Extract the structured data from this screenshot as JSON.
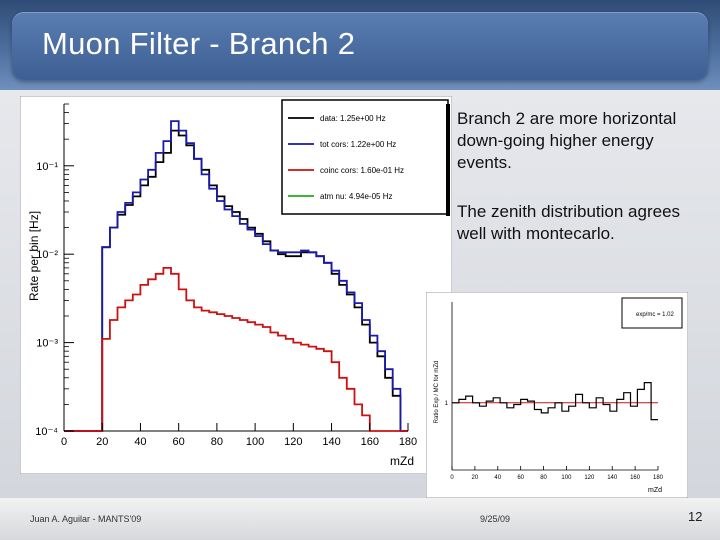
{
  "slide": {
    "title": "Muon Filter - Branch 2",
    "bullet1": [
      "Branch 2 are more horizontal",
      "down-going higher energy",
      "events."
    ],
    "bullet2": [
      "The zenith distribution agrees",
      "well with montecarlo."
    ],
    "footer_left": "Juan A. Aguilar - MANTS'09",
    "footer_center": "9/25/09",
    "page_number": "12"
  },
  "chart_data": [
    {
      "type": "line",
      "xlabel": "mZd",
      "ylabel": "Rate per bin [Hz]",
      "ylog": true,
      "ylim": [
        0.0001,
        0.5
      ],
      "xlim": [
        0,
        180
      ],
      "x_ticks": [
        "0",
        "20",
        "40",
        "60",
        "80",
        "100",
        "120",
        "140",
        "160",
        "180"
      ],
      "y_ticks": [
        "10⁻¹",
        "10⁻²",
        "10⁻³",
        "10⁻⁴"
      ],
      "legend": {
        "placement": "top-right",
        "entries": [
          {
            "label": "data: 1.25e+00 Hz",
            "color": "#000000"
          },
          {
            "label": "tot cors: 1.22e+00 Hz",
            "color": "#1a1aa8"
          },
          {
            "label": "coinc cors: 1.60e-01 Hz",
            "color": "#cc1111"
          },
          {
            "label": "atm nu: 4.94e-05 Hz",
            "color": "#22aa22"
          }
        ]
      },
      "x": [
        0,
        4,
        8,
        12,
        16,
        20,
        24,
        28,
        32,
        36,
        40,
        44,
        48,
        52,
        56,
        60,
        64,
        68,
        72,
        76,
        80,
        84,
        88,
        92,
        96,
        100,
        104,
        108,
        112,
        116,
        120,
        124,
        128,
        132,
        136,
        140,
        144,
        148,
        152,
        156,
        160,
        164,
        168,
        172,
        176
      ],
      "series": [
        {
          "name": "data",
          "color": "#000000",
          "values": [
            0.0001,
            0.0001,
            0.0001,
            0.0001,
            0.0001,
            0.012,
            0.02,
            0.028,
            0.036,
            0.045,
            0.06,
            0.075,
            0.11,
            0.14,
            0.25,
            0.22,
            0.17,
            0.12,
            0.09,
            0.06,
            0.045,
            0.035,
            0.03,
            0.025,
            0.02,
            0.017,
            0.014,
            0.011,
            0.01,
            0.0095,
            0.0095,
            0.0105,
            0.0105,
            0.0095,
            0.008,
            0.006,
            0.0045,
            0.0035,
            0.0025,
            0.0016,
            0.001,
            0.0007,
            0.0004,
            0.00025,
            0.0001
          ]
        },
        {
          "name": "tot cors",
          "color": "#1a1aa8",
          "values": [
            0.0001,
            0.0001,
            0.0001,
            0.0001,
            0.0001,
            0.012,
            0.02,
            0.03,
            0.038,
            0.05,
            0.07,
            0.09,
            0.14,
            0.19,
            0.32,
            0.25,
            0.18,
            0.12,
            0.08,
            0.055,
            0.04,
            0.032,
            0.027,
            0.022,
            0.019,
            0.016,
            0.013,
            0.011,
            0.0105,
            0.0105,
            0.0105,
            0.011,
            0.0105,
            0.0095,
            0.008,
            0.0065,
            0.005,
            0.0037,
            0.0028,
            0.0018,
            0.0012,
            0.0008,
            0.0005,
            0.0003,
            0.0001
          ]
        },
        {
          "name": "coinc cors",
          "color": "#cc1111",
          "values": [
            0.0001,
            0.0001,
            0.0001,
            0.0001,
            0.0001,
            0.0011,
            0.0018,
            0.0025,
            0.003,
            0.0035,
            0.0045,
            0.0052,
            0.006,
            0.007,
            0.006,
            0.004,
            0.003,
            0.0025,
            0.0023,
            0.0022,
            0.0021,
            0.002,
            0.0019,
            0.0018,
            0.0017,
            0.0016,
            0.0015,
            0.0013,
            0.0012,
            0.0011,
            0.001,
            0.00095,
            0.0009,
            0.00085,
            0.0008,
            0.0006,
            0.0004,
            0.0003,
            0.0002,
            0.00015,
            0.0001,
            0.0001,
            0.0001,
            0.0001,
            0.0001
          ]
        }
      ]
    },
    {
      "type": "line",
      "ylabel": "Ratio Exp / MC for mZd",
      "xlabel": "mZd",
      "xlim": [
        0,
        180
      ],
      "x_ticks": [
        "0",
        "20",
        "40",
        "60",
        "80",
        "100",
        "120",
        "140",
        "160",
        "180"
      ],
      "y_reference_label": "1",
      "reference_line": 1,
      "legend": {
        "placement": "top-right",
        "entries": [
          {
            "label": "exp/mc = 1.02"
          }
        ]
      },
      "series": [
        {
          "name": "ratio",
          "color": "#000000",
          "x": [
            0,
            6,
            12,
            18,
            24,
            30,
            36,
            42,
            48,
            54,
            60,
            66,
            72,
            78,
            84,
            90,
            96,
            102,
            108,
            114,
            120,
            126,
            132,
            138,
            144,
            150,
            156,
            162,
            168,
            174
          ],
          "values": [
            1.0,
            1.02,
            1.04,
            1.0,
            0.98,
            1.01,
            1.03,
            1.0,
            0.97,
            0.99,
            1.02,
            1.01,
            0.96,
            0.94,
            0.97,
            1.0,
            0.95,
            0.98,
            1.05,
            1.0,
            0.97,
            1.03,
            0.99,
            0.95,
            1.02,
            1.06,
            0.98,
            1.08,
            1.12,
            0.9
          ]
        }
      ]
    }
  ]
}
